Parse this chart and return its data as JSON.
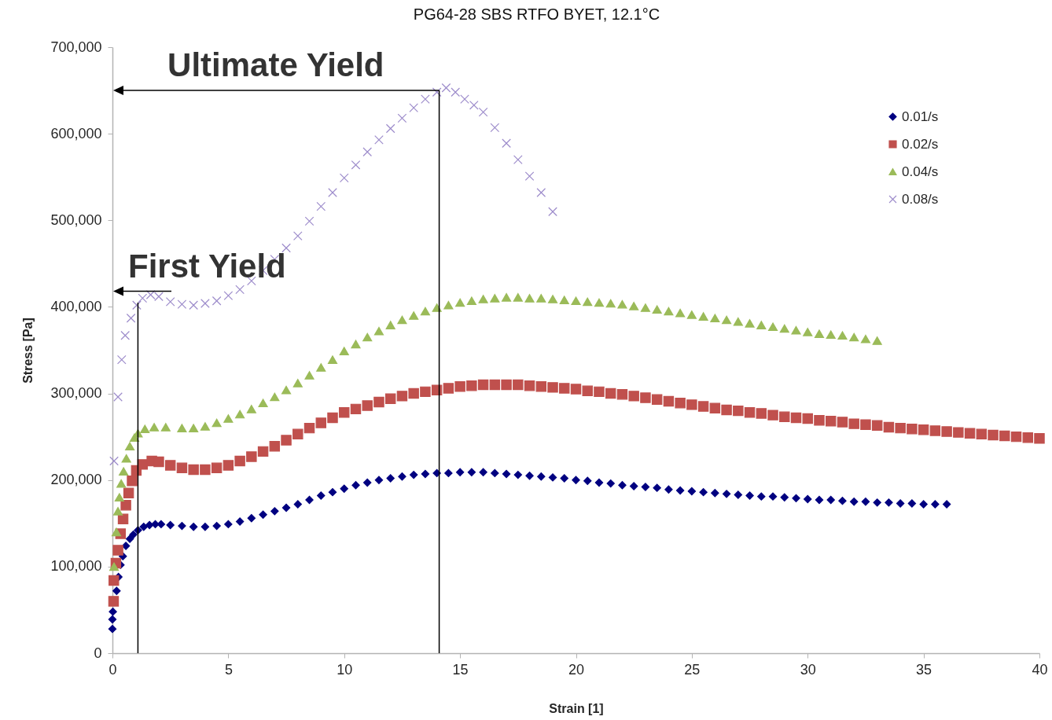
{
  "chart_data": {
    "type": "scatter",
    "title": "PG64-28 SBS RTFO BYET, 12.1°C",
    "xlabel": "Strain [1]",
    "ylabel": "Stress [Pa]",
    "xlim": [
      0,
      40
    ],
    "xticks": [
      0,
      5,
      10,
      15,
      20,
      25,
      30,
      35,
      40
    ],
    "ylim": [
      0,
      700000
    ],
    "yticks": [
      0,
      {
        "value": 100000,
        "label": "100,000"
      },
      {
        "value": 200000,
        "label": "200,000"
      },
      {
        "value": 300000,
        "label": "300,000"
      },
      {
        "value": 400000,
        "label": "400,000"
      },
      {
        "value": 500000,
        "label": "500,000"
      },
      {
        "value": 600000,
        "label": "600,000"
      },
      {
        "value": 700000,
        "label": "700,000"
      }
    ],
    "grid": false,
    "legend": "top right",
    "series": [
      {
        "name": "0.01/s",
        "color": "#000080",
        "marker": "diamond",
        "x": [
          0,
          0,
          0.02,
          0.18,
          0.26,
          0.35,
          0.45,
          0.58,
          0.75,
          0.9,
          1.1,
          1.35,
          1.6,
          1.85,
          2.1,
          2.5,
          3,
          3.5,
          4,
          4.5,
          5,
          5.5,
          6,
          6.5,
          7,
          7.5,
          8,
          8.5,
          9,
          9.5,
          10,
          10.5,
          11,
          11.5,
          12,
          12.5,
          13,
          13.5,
          14,
          14.5,
          15,
          15.5,
          16,
          16.5,
          17,
          17.5,
          18,
          18.5,
          19,
          19.5,
          20,
          20.5,
          21,
          21.5,
          22,
          22.5,
          23,
          23.5,
          24,
          24.5,
          25,
          25.5,
          26,
          26.5,
          27,
          27.5,
          28,
          28.5,
          29,
          29.5,
          30,
          30.5,
          31,
          31.5,
          32,
          32.5,
          33,
          33.5,
          34,
          34.5,
          35,
          35.5,
          36
        ],
        "values": [
          28000,
          39000,
          48000,
          72000,
          88000,
          102000,
          112000,
          124000,
          132000,
          137000,
          142000,
          146000,
          148000,
          149000,
          149000,
          148000,
          147000,
          146000,
          146000,
          147000,
          149000,
          152000,
          156000,
          160000,
          164000,
          168000,
          172000,
          177000,
          182000,
          186000,
          190000,
          194000,
          197000,
          200000,
          202000,
          204000,
          206000,
          207000,
          208000,
          208000,
          209000,
          209000,
          209000,
          208000,
          207000,
          206000,
          205000,
          204000,
          203000,
          202000,
          200000,
          199000,
          197000,
          196000,
          194000,
          193000,
          192000,
          191000,
          189000,
          188000,
          187000,
          186000,
          185000,
          184000,
          183000,
          182000,
          181000,
          181000,
          180000,
          179000,
          178000,
          177000,
          177000,
          176000,
          175000,
          175000,
          174000,
          174000,
          173000,
          173000,
          172000,
          172000,
          172000
        ]
      },
      {
        "name": "0.02/s",
        "color": "#c0504d",
        "marker": "square",
        "x": [
          0.05,
          0.06,
          0.15,
          0.24,
          0.35,
          0.46,
          0.58,
          0.7,
          0.85,
          1.03,
          1.3,
          1.7,
          2,
          2.5,
          3,
          3.5,
          4,
          4.5,
          5,
          5.5,
          6,
          6.5,
          7,
          7.5,
          8,
          8.5,
          9,
          9.5,
          10,
          10.5,
          11,
          11.5,
          12,
          12.5,
          13,
          13.5,
          14,
          14.5,
          15,
          15.5,
          16,
          16.5,
          17,
          17.5,
          18,
          18.5,
          19,
          19.5,
          20,
          20.5,
          21,
          21.5,
          22,
          22.5,
          23,
          23.5,
          24,
          24.5,
          25,
          25.5,
          26,
          26.5,
          27,
          27.5,
          28,
          28.5,
          29,
          29.5,
          30,
          30.5,
          31,
          31.5,
          32,
          32.5,
          33,
          33.5,
          34,
          34.5,
          35,
          35.5,
          36,
          36.5,
          37,
          37.5,
          38,
          38.5,
          39,
          39.5,
          40
        ],
        "values": [
          60000,
          84000,
          104000,
          119000,
          138000,
          155000,
          171000,
          185000,
          199000,
          211000,
          218000,
          222000,
          221000,
          217000,
          214000,
          212000,
          212000,
          214000,
          217000,
          222000,
          227000,
          233000,
          239000,
          246000,
          253000,
          260000,
          266000,
          272000,
          278000,
          282000,
          286000,
          290000,
          294000,
          297000,
          300000,
          302000,
          304000,
          306000,
          308000,
          309000,
          310000,
          310000,
          310000,
          310000,
          309000,
          308000,
          307000,
          306000,
          305000,
          303000,
          302000,
          300000,
          299000,
          297000,
          295000,
          293000,
          291000,
          289000,
          287000,
          285000,
          283000,
          281000,
          280000,
          278000,
          277000,
          275000,
          273000,
          272000,
          271000,
          269000,
          268000,
          267000,
          265000,
          264000,
          263000,
          261000,
          260000,
          259000,
          258000,
          257000,
          256000,
          255000,
          254000,
          253000,
          252000,
          251000,
          250000,
          249000,
          248000
        ]
      },
      {
        "name": "0.04/s",
        "color": "#9bbb59",
        "marker": "triangle",
        "x": [
          0.07,
          0.17,
          0.24,
          0.3,
          0.38,
          0.48,
          0.6,
          0.75,
          0.95,
          1.1,
          1.4,
          1.8,
          2.3,
          3,
          3.5,
          4,
          4.5,
          5,
          5.5,
          6,
          6.5,
          7,
          7.5,
          8,
          8.5,
          9,
          9.5,
          10,
          10.5,
          11,
          11.5,
          12,
          12.5,
          13,
          13.5,
          14,
          14.5,
          15,
          15.5,
          16,
          16.5,
          17,
          17.5,
          18,
          18.5,
          19,
          19.5,
          20,
          20.5,
          21,
          21.5,
          22,
          22.5,
          23,
          23.5,
          24,
          24.5,
          25,
          25.5,
          26,
          26.5,
          27,
          27.5,
          28,
          28.5,
          29,
          29.5,
          30,
          30.5,
          31,
          31.5,
          32,
          32.5,
          33
        ],
        "values": [
          100000,
          140000,
          164000,
          180000,
          196000,
          210000,
          225000,
          239000,
          249000,
          254000,
          259000,
          261000,
          261000,
          260000,
          260000,
          262000,
          266000,
          271000,
          276000,
          282000,
          289000,
          296000,
          304000,
          312000,
          321000,
          330000,
          339000,
          349000,
          357000,
          365000,
          372000,
          379000,
          385000,
          390000,
          395000,
          399000,
          402000,
          405000,
          407000,
          409000,
          410000,
          411000,
          411000,
          410000,
          410000,
          409000,
          408000,
          407000,
          406000,
          405000,
          404000,
          403000,
          401000,
          399000,
          397000,
          395000,
          393000,
          391000,
          389000,
          387000,
          385000,
          383000,
          381000,
          379000,
          377000,
          375000,
          373000,
          371000,
          369000,
          368000,
          367000,
          365000,
          363000,
          361000
        ]
      },
      {
        "name": "0.08/s",
        "color": "#9d8ccb",
        "marker": "cross",
        "x": [
          0.07,
          0.24,
          0.4,
          0.55,
          0.8,
          1.05,
          1.3,
          1.65,
          2,
          2.5,
          3,
          3.5,
          4,
          4.5,
          5,
          5.5,
          6,
          6.5,
          7,
          7.5,
          8,
          8.5,
          9,
          9.5,
          10,
          10.5,
          11,
          11.5,
          12,
          12.5,
          13,
          13.5,
          14,
          14.4,
          14.8,
          15.2,
          15.6,
          16,
          16.5,
          17,
          17.5,
          18,
          18.5,
          19
        ],
        "values": [
          222000,
          296000,
          339000,
          367000,
          387000,
          402000,
          410000,
          414000,
          412000,
          406000,
          403000,
          402000,
          404000,
          407000,
          413000,
          420000,
          430000,
          442000,
          455000,
          468000,
          482000,
          499000,
          516000,
          532000,
          549000,
          564000,
          579000,
          593000,
          606000,
          618000,
          630000,
          640000,
          648000,
          653000,
          648000,
          640000,
          633000,
          625000,
          607000,
          589000,
          570000,
          551000,
          532000,
          510000
        ]
      },
      {
        "type": "line",
        "color": "#000000",
        "x": [
          14.1,
          14.1
        ],
        "values": [
          0,
          650000
        ]
      },
      {
        "type": "line",
        "color": "#000000",
        "x": [
          1.1,
          1.1
        ],
        "values": [
          0,
          405000
        ]
      }
    ],
    "annotations": [
      {
        "text": "Ultimate Yield",
        "x": 14.1,
        "y": 650000
      },
      {
        "text": "First Yield",
        "x": 1.1,
        "y": 418000
      }
    ]
  }
}
